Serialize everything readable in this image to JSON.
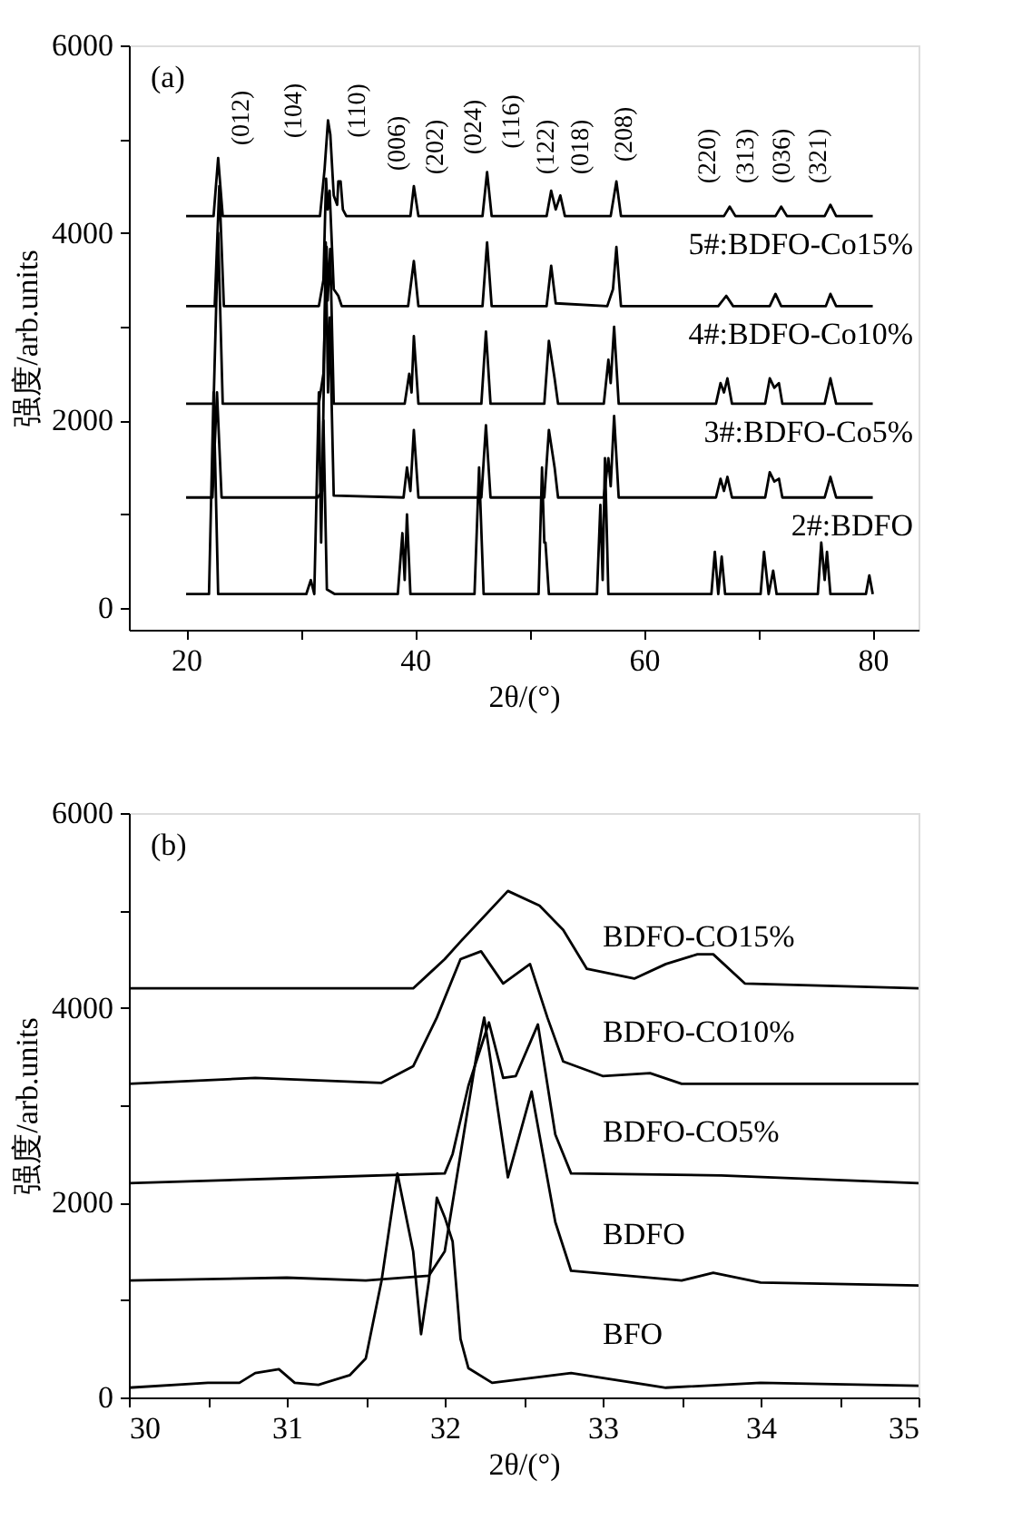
{
  "chart_data": [
    {
      "type": "line",
      "xlabel": "2θ/(°)",
      "ylabel": "强度/arb.units",
      "xlim": [
        15,
        84
      ],
      "ylim": [
        -230,
        6000
      ],
      "xticks": [
        20,
        {
          "value": 30,
          "label": null
        },
        40,
        {
          "value": 50,
          "label": null
        },
        60,
        {
          "value": 70,
          "label": null
        },
        80
      ],
      "yticks": [
        0,
        {
          "value": 1000,
          "label": null
        },
        2000,
        {
          "value": 3000,
          "label": null
        },
        4000,
        {
          "value": 5000,
          "label": null
        },
        6000
      ],
      "series": [
        {
          "color": "#000000",
          "x": [
            20,
            22.0,
            22.4,
            22.8,
            30.5,
            30.9,
            31.2,
            31.6,
            31.8,
            32.0,
            32.3,
            33,
            38.5,
            38.9,
            39.1,
            39.3,
            39.6,
            45.2,
            45.6,
            46.0,
            50.8,
            51.1,
            51.3,
            51.4,
            51.7,
            55.9,
            56.2,
            56.4,
            56.6,
            56.9,
            65.9,
            66.2,
            66.5,
            66.8,
            67.1,
            70.2,
            70.5,
            70.9,
            71.3,
            71.6,
            75.2,
            75.5,
            75.8,
            76.0,
            76.3,
            79.4,
            79.7,
            80
          ],
          "values": [
            150,
            150,
            2300,
            150,
            150,
            300,
            150,
            2300,
            700,
            2000,
            200,
            150,
            150,
            800,
            300,
            1000,
            150,
            150,
            1500,
            150,
            150,
            1500,
            700,
            700,
            150,
            150,
            1100,
            300,
            1600,
            150,
            150,
            600,
            150,
            550,
            150,
            150,
            600,
            150,
            400,
            150,
            150,
            700,
            300,
            600,
            150,
            150,
            350,
            150
          ]
        },
        {
          "name": "2#:BDFO",
          "color": "#000000",
          "x": [
            20,
            22.3,
            22.7,
            23.1,
            31.5,
            31.9,
            32.2,
            32.4,
            32.55,
            32.9,
            39.0,
            39.3,
            39.6,
            39.9,
            40.3,
            45.8,
            46.2,
            46.6,
            51.3,
            51.7,
            52.2,
            52.5,
            56.5,
            56.9,
            57.1,
            57.4,
            57.8,
            66.3,
            66.7,
            67.0,
            67.3,
            67.7,
            70.6,
            71.0,
            71.4,
            71.8,
            72.1,
            75.8,
            76.3,
            76.8,
            80
          ],
          "values": [
            1180,
            1180,
            2300,
            1180,
            1180,
            1250,
            3900,
            2300,
            3100,
            1200,
            1180,
            1500,
            1250,
            1900,
            1180,
            1180,
            1950,
            1180,
            1180,
            1900,
            1500,
            1180,
            1180,
            1600,
            1300,
            2050,
            1180,
            1180,
            1380,
            1250,
            1400,
            1180,
            1180,
            1450,
            1350,
            1380,
            1180,
            1180,
            1400,
            1180,
            1180
          ]
        },
        {
          "name": "3#:BDFO-Co5%",
          "color": "#000000",
          "x": [
            20,
            22.4,
            22.8,
            23.2,
            31.6,
            32.0,
            32.28,
            32.37,
            32.59,
            32.9,
            39.1,
            39.5,
            39.7,
            39.9,
            40.3,
            45.8,
            46.2,
            46.6,
            51.3,
            51.7,
            52.2,
            52.5,
            56.5,
            56.9,
            57.1,
            57.4,
            57.8,
            66.3,
            66.7,
            67.0,
            67.3,
            67.7,
            70.6,
            71.0,
            71.4,
            71.8,
            72.1,
            75.8,
            76.3,
            76.8,
            80
          ],
          "values": [
            2180,
            2180,
            4000,
            2180,
            2180,
            2500,
            3850,
            3280,
            3830,
            2180,
            2180,
            2500,
            2300,
            2900,
            2180,
            2180,
            2950,
            2180,
            2180,
            2850,
            2450,
            2180,
            2180,
            2650,
            2400,
            3000,
            2180,
            2180,
            2400,
            2300,
            2450,
            2180,
            2180,
            2450,
            2350,
            2400,
            2180,
            2180,
            2450,
            2180,
            2180
          ]
        },
        {
          "name": "4#:BDFO-Co10%",
          "color": "#000000",
          "x": [
            20,
            22.5,
            22.9,
            23.3,
            31.6,
            32.0,
            32.23,
            32.37,
            32.54,
            32.9,
            33.3,
            33.6,
            39.4,
            39.9,
            40.3,
            45.9,
            46.3,
            46.7,
            51.5,
            51.9,
            52.3,
            56.8,
            57.3,
            57.6,
            58.0,
            66.5,
            67.2,
            67.8,
            71.0,
            71.5,
            72.0,
            75.9,
            76.3,
            76.8,
            80
          ],
          "values": [
            3220,
            3220,
            4500,
            3220,
            3220,
            3500,
            4580,
            4250,
            4450,
            3400,
            3330,
            3220,
            3220,
            3700,
            3220,
            3220,
            3900,
            3220,
            3220,
            3650,
            3250,
            3220,
            3400,
            3850,
            3220,
            3220,
            3330,
            3220,
            3220,
            3350,
            3220,
            3220,
            3350,
            3220,
            3220
          ]
        },
        {
          "name": "5#:BDFO-Co15%",
          "color": "#000000",
          "x": [
            20,
            22.4,
            22.8,
            23.2,
            31.7,
            32.1,
            32.4,
            32.6,
            32.9,
            33.2,
            33.3,
            33.5,
            33.7,
            34.0,
            39.6,
            39.9,
            40.3,
            45.9,
            46.3,
            46.7,
            51.5,
            51.9,
            52.3,
            52.7,
            53.1,
            57.1,
            57.6,
            58.0,
            67,
            67.5,
            68,
            71.5,
            72,
            72.5,
            75.8,
            76.3,
            76.8,
            80
          ],
          "values": [
            4180,
            4180,
            4800,
            4180,
            4180,
            4680,
            5200,
            5050,
            4400,
            4300,
            4550,
            4550,
            4250,
            4180,
            4180,
            4500,
            4180,
            4180,
            4650,
            4180,
            4180,
            4450,
            4250,
            4400,
            4180,
            4180,
            4550,
            4180,
            4180,
            4280,
            4180,
            4180,
            4280,
            4180,
            4180,
            4300,
            4180,
            4180
          ]
        }
      ],
      "annotations": [
        "(a)",
        "(012)",
        "(104)",
        "(110)",
        "(006)",
        "(202)",
        "(024)",
        "(116)",
        "(122)",
        "(018)",
        "(208)",
        "(220)",
        "(313)",
        "(036)",
        "(321)"
      ]
    },
    {
      "type": "line",
      "xlabel": "2θ/(°)",
      "ylabel": "强度/arb.units",
      "xlim": [
        30,
        35
      ],
      "ylim": [
        0,
        6000
      ],
      "xticks": [
        30,
        {
          "value": 30.5,
          "label": null
        },
        31,
        {
          "value": 31.5,
          "label": null
        },
        32,
        {
          "value": 32.5,
          "label": null
        },
        33,
        {
          "value": 33.5,
          "label": null
        },
        34,
        {
          "value": 34.5,
          "label": null
        },
        35
      ],
      "yticks": [
        0,
        {
          "value": 1000,
          "label": null
        },
        2000,
        {
          "value": 3000,
          "label": null
        },
        4000,
        {
          "value": 5000,
          "label": null
        },
        6000
      ],
      "series": [
        {
          "name": "BFO",
          "color": "#000000",
          "x": [
            30,
            30.5,
            30.7,
            30.8,
            30.95,
            31.05,
            31.2,
            31.4,
            31.5,
            31.6,
            31.7,
            31.8,
            31.85,
            31.9,
            31.95,
            32.0,
            32.05,
            32.1,
            32.15,
            32.3,
            32.8,
            33.4,
            34,
            35
          ],
          "values": [
            100,
            150,
            150,
            250,
            290,
            150,
            130,
            230,
            400,
            1200,
            2300,
            1500,
            650,
            1200,
            2050,
            1850,
            1600,
            600,
            300,
            150,
            250,
            100,
            150,
            120
          ]
        },
        {
          "name": "BDFO",
          "color": "#000000",
          "x": [
            30,
            31,
            31.5,
            31.9,
            32.0,
            32.1,
            32.2,
            32.25,
            32.4,
            32.55,
            32.7,
            32.8,
            33.5,
            33.7,
            34,
            35
          ],
          "values": [
            1200,
            1230,
            1200,
            1250,
            1500,
            2500,
            3500,
            3900,
            2260,
            3140,
            1800,
            1300,
            1200,
            1280,
            1180,
            1150
          ]
        },
        {
          "name": "BDFO-CO5%",
          "color": "#000000",
          "x": [
            30,
            31,
            32.0,
            32.05,
            32.15,
            32.28,
            32.37,
            32.45,
            32.59,
            32.7,
            32.8,
            33.75,
            35
          ],
          "values": [
            2200,
            2250,
            2300,
            2500,
            3200,
            3850,
            3280,
            3300,
            3830,
            2700,
            2300,
            2280,
            2200
          ]
        },
        {
          "name": "BDFO-CO10%",
          "color": "#000000",
          "x": [
            30,
            30.8,
            31.6,
            31.8,
            31.95,
            32.1,
            32.23,
            32.37,
            32.54,
            32.65,
            32.75,
            33,
            33.3,
            33.5,
            35
          ],
          "values": [
            3220,
            3280,
            3230,
            3400,
            3900,
            4500,
            4580,
            4250,
            4450,
            3900,
            3450,
            3300,
            3330,
            3220,
            3220
          ]
        },
        {
          "name": "BDFO-CO15%",
          "color": "#000000",
          "x": [
            30,
            31.8,
            31.9,
            32.0,
            32.1,
            32.4,
            32.6,
            32.75,
            32.9,
            33.2,
            33.4,
            33.6,
            33.7,
            33.9,
            35
          ],
          "values": [
            4200,
            4200,
            4350,
            4500,
            4680,
            5200,
            5050,
            4800,
            4400,
            4300,
            4450,
            4550,
            4550,
            4250,
            4200
          ]
        }
      ],
      "annotations": [
        "(b)"
      ]
    }
  ]
}
